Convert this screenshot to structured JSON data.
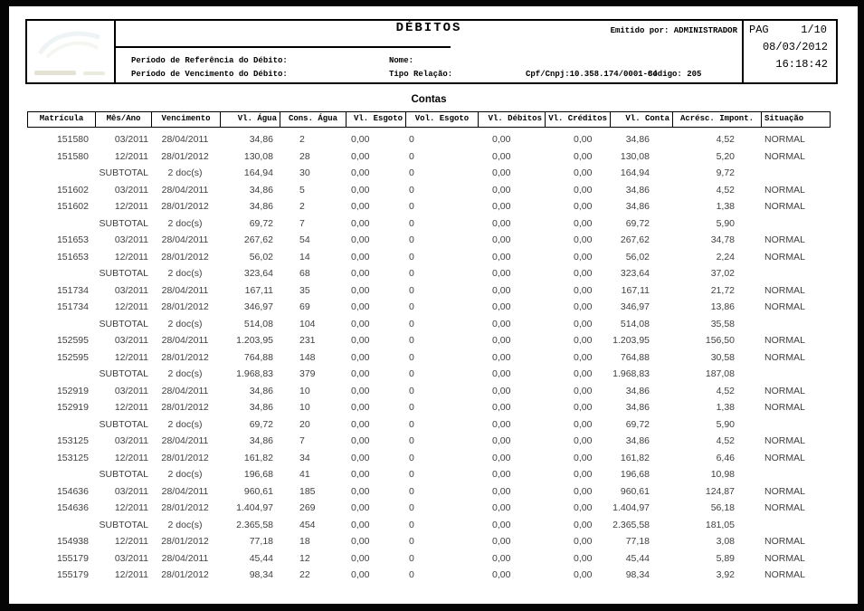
{
  "header": {
    "title": "DÉBITOS",
    "emitido": "Emitido por: ADMINISTRADOR",
    "fields": {
      "periodo_referencia": "Período de Referência do Débito:",
      "nome": "Nome:",
      "periodo_vencimento": "Período de Vencimento do Débito:",
      "tipo_relacao": "Tipo Relação:",
      "cpf_cnpj": "Cpf/Cnpj:10.358.174/0001-84",
      "codigo": "Código: 205"
    },
    "pag": {
      "label": "PAG",
      "value": "1/10",
      "date": "08/03/2012",
      "time": "16:18:42"
    },
    "icons": {
      "logo": "faded-company-logo"
    }
  },
  "section_title": "Contas",
  "table": {
    "columns": [
      "Matrícula",
      "Mês/Ano",
      "Vencimento",
      "Vl. Água",
      "Cons. Água",
      "Vl. Esgoto",
      "Vol. Esgoto",
      "Vl. Débitos",
      "Vl. Créditos",
      "Vl. Conta",
      "Acrésc. Impont.",
      "Situação"
    ],
    "column_keys": [
      "matricula",
      "mes-ano",
      "vencimento",
      "vl-agua",
      "cons-agua",
      "vl-esgoto",
      "vol-esgoto",
      "vl-debitos",
      "vl-creditos",
      "vl-conta",
      "acresc-impont",
      "situacao"
    ],
    "rows": [
      [
        "151580",
        "03/2011",
        "28/04/2011",
        "34,86",
        "2",
        "0,00",
        "0",
        "0,00",
        "0,00",
        "34,86",
        "4,52",
        "NORMAL"
      ],
      [
        "151580",
        "12/2011",
        "28/01/2012",
        "130,08",
        "28",
        "0,00",
        "0",
        "0,00",
        "0,00",
        "130,08",
        "5,20",
        "NORMAL"
      ],
      [
        "",
        "SUBTOTAL",
        "2 doc(s)",
        "164,94",
        "30",
        "0,00",
        "0",
        "0,00",
        "0,00",
        "164,94",
        "9,72",
        ""
      ],
      [
        "151602",
        "03/2011",
        "28/04/2011",
        "34,86",
        "5",
        "0,00",
        "0",
        "0,00",
        "0,00",
        "34,86",
        "4,52",
        "NORMAL"
      ],
      [
        "151602",
        "12/2011",
        "28/01/2012",
        "34,86",
        "2",
        "0,00",
        "0",
        "0,00",
        "0,00",
        "34,86",
        "1,38",
        "NORMAL"
      ],
      [
        "",
        "SUBTOTAL",
        "2 doc(s)",
        "69,72",
        "7",
        "0,00",
        "0",
        "0,00",
        "0,00",
        "69,72",
        "5,90",
        ""
      ],
      [
        "151653",
        "03/2011",
        "28/04/2011",
        "267,62",
        "54",
        "0,00",
        "0",
        "0,00",
        "0,00",
        "267,62",
        "34,78",
        "NORMAL"
      ],
      [
        "151653",
        "12/2011",
        "28/01/2012",
        "56,02",
        "14",
        "0,00",
        "0",
        "0,00",
        "0,00",
        "56,02",
        "2,24",
        "NORMAL"
      ],
      [
        "",
        "SUBTOTAL",
        "2 doc(s)",
        "323,64",
        "68",
        "0,00",
        "0",
        "0,00",
        "0,00",
        "323,64",
        "37,02",
        ""
      ],
      [
        "151734",
        "03/2011",
        "28/04/2011",
        "167,11",
        "35",
        "0,00",
        "0",
        "0,00",
        "0,00",
        "167,11",
        "21,72",
        "NORMAL"
      ],
      [
        "151734",
        "12/2011",
        "28/01/2012",
        "346,97",
        "69",
        "0,00",
        "0",
        "0,00",
        "0,00",
        "346,97",
        "13,86",
        "NORMAL"
      ],
      [
        "",
        "SUBTOTAL",
        "2 doc(s)",
        "514,08",
        "104",
        "0,00",
        "0",
        "0,00",
        "0,00",
        "514,08",
        "35,58",
        ""
      ],
      [
        "152595",
        "03/2011",
        "28/04/2011",
        "1.203,95",
        "231",
        "0,00",
        "0",
        "0,00",
        "0,00",
        "1.203,95",
        "156,50",
        "NORMAL"
      ],
      [
        "152595",
        "12/2011",
        "28/01/2012",
        "764,88",
        "148",
        "0,00",
        "0",
        "0,00",
        "0,00",
        "764,88",
        "30,58",
        "NORMAL"
      ],
      [
        "",
        "SUBTOTAL",
        "2 doc(s)",
        "1.968,83",
        "379",
        "0,00",
        "0",
        "0,00",
        "0,00",
        "1.968,83",
        "187,08",
        ""
      ],
      [
        "152919",
        "03/2011",
        "28/04/2011",
        "34,86",
        "10",
        "0,00",
        "0",
        "0,00",
        "0,00",
        "34,86",
        "4,52",
        "NORMAL"
      ],
      [
        "152919",
        "12/2011",
        "28/01/2012",
        "34,86",
        "10",
        "0,00",
        "0",
        "0,00",
        "0,00",
        "34,86",
        "1,38",
        "NORMAL"
      ],
      [
        "",
        "SUBTOTAL",
        "2 doc(s)",
        "69,72",
        "20",
        "0,00",
        "0",
        "0,00",
        "0,00",
        "69,72",
        "5,90",
        ""
      ],
      [
        "153125",
        "03/2011",
        "28/04/2011",
        "34,86",
        "7",
        "0,00",
        "0",
        "0,00",
        "0,00",
        "34,86",
        "4,52",
        "NORMAL"
      ],
      [
        "153125",
        "12/2011",
        "28/01/2012",
        "161,82",
        "34",
        "0,00",
        "0",
        "0,00",
        "0,00",
        "161,82",
        "6,46",
        "NORMAL"
      ],
      [
        "",
        "SUBTOTAL",
        "2 doc(s)",
        "196,68",
        "41",
        "0,00",
        "0",
        "0,00",
        "0,00",
        "196,68",
        "10,98",
        ""
      ],
      [
        "154636",
        "03/2011",
        "28/04/2011",
        "960,61",
        "185",
        "0,00",
        "0",
        "0,00",
        "0,00",
        "960,61",
        "124,87",
        "NORMAL"
      ],
      [
        "154636",
        "12/2011",
        "28/01/2012",
        "1.404,97",
        "269",
        "0,00",
        "0",
        "0,00",
        "0,00",
        "1.404,97",
        "56,18",
        "NORMAL"
      ],
      [
        "",
        "SUBTOTAL",
        "2 doc(s)",
        "2.365,58",
        "454",
        "0,00",
        "0",
        "0,00",
        "0,00",
        "2.365,58",
        "181,05",
        ""
      ],
      [
        "154938",
        "12/2011",
        "28/01/2012",
        "77,18",
        "18",
        "0,00",
        "0",
        "0,00",
        "0,00",
        "77,18",
        "3,08",
        "NORMAL"
      ],
      [
        "155179",
        "03/2011",
        "28/04/2011",
        "45,44",
        "12",
        "0,00",
        "0",
        "0,00",
        "0,00",
        "45,44",
        "5,89",
        "NORMAL"
      ],
      [
        "155179",
        "12/2011",
        "28/01/2012",
        "98,34",
        "22",
        "0,00",
        "0",
        "0,00",
        "0,00",
        "98,34",
        "3,92",
        "NORMAL"
      ]
    ]
  }
}
